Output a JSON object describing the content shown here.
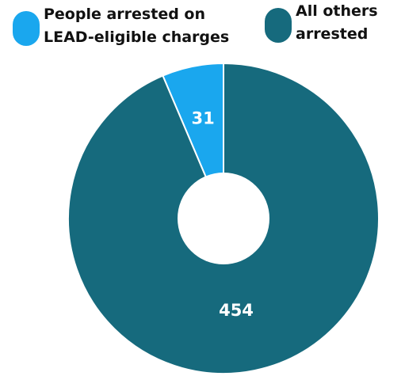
{
  "chart_data": {
    "type": "pie",
    "donut": true,
    "title": "",
    "series": [
      {
        "name": "People arrested on LEAD-eligible charges",
        "value": 31,
        "color": "#1aa7ee"
      },
      {
        "name": "All others arrested",
        "value": 454,
        "color": "#166a7d"
      }
    ],
    "legend": {
      "position": "top",
      "items": [
        {
          "label": "People arrested on\nLEAD-eligible charges",
          "color": "#1aa7ee"
        },
        {
          "label": "All others\narrested",
          "color": "#166a7d"
        }
      ]
    },
    "labels": [
      "31",
      "454"
    ]
  }
}
